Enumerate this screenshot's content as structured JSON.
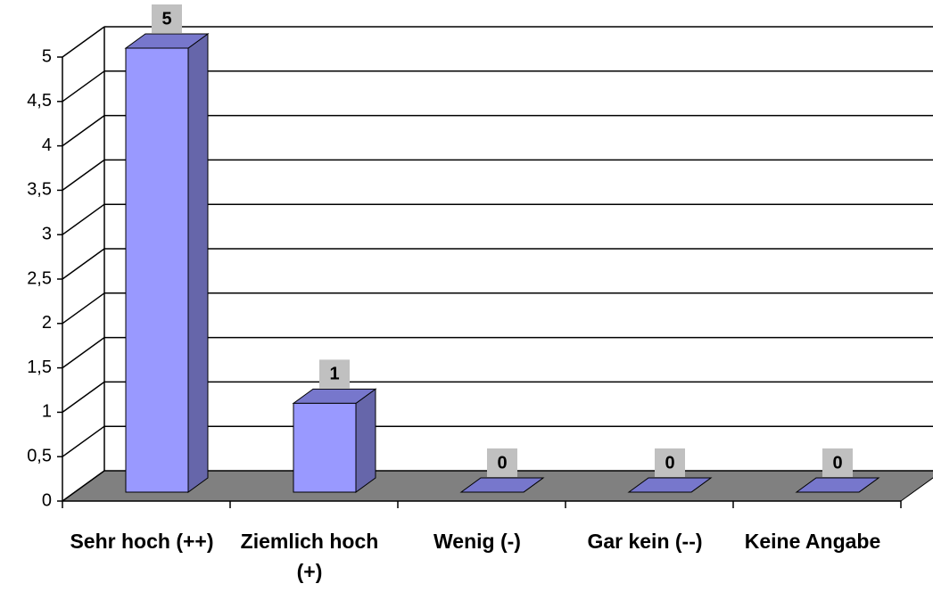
{
  "chart_data": {
    "type": "bar3d",
    "categories": [
      "Sehr hoch (++)",
      "Ziemlich hoch (+)",
      "Wenig (-)",
      "Gar kein (--)",
      "Keine Angabe"
    ],
    "values": [
      5,
      1,
      0,
      0,
      0
    ],
    "color": "#9999ff",
    "ylim": [
      0,
      5
    ],
    "yticks": [
      0,
      {
        "value": 0.5,
        "label": "0,5"
      },
      1,
      {
        "value": 1.5,
        "label": "1,5"
      },
      2,
      {
        "value": 2.5,
        "label": "2,5"
      },
      3,
      {
        "value": 3.5,
        "label": "3,5"
      },
      4,
      {
        "value": 4.5,
        "label": "4,5"
      },
      5
    ],
    "grid": true
  }
}
